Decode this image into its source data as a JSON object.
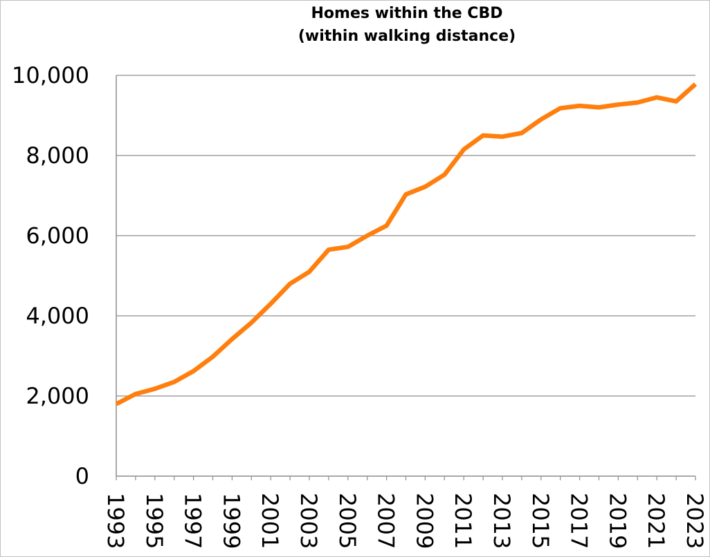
{
  "chart_data": {
    "type": "line",
    "title": "Homes within the CBD",
    "subtitle": "(within walking distance)",
    "xlabel": "",
    "ylabel": "",
    "ylim": [
      0,
      10000
    ],
    "xlim": [
      1993,
      2023
    ],
    "grid": true,
    "y_ticks": [
      "0",
      "2,000",
      "4,000",
      "6,000",
      "8,000",
      "10,000"
    ],
    "y_tick_values": [
      0,
      2000,
      4000,
      6000,
      8000,
      10000
    ],
    "x_tick_labels": [
      "1993",
      "1995",
      "1997",
      "1999",
      "2001",
      "2003",
      "2005",
      "2007",
      "2009",
      "2011",
      "2013",
      "2015",
      "2017",
      "2019",
      "2021",
      "2023"
    ],
    "x": [
      1993,
      1994,
      1995,
      1996,
      1997,
      1998,
      1999,
      2000,
      2001,
      2002,
      2003,
      2004,
      2005,
      2006,
      2007,
      2008,
      2009,
      2010,
      2011,
      2012,
      2013,
      2014,
      2015,
      2016,
      2017,
      2018,
      2019,
      2020,
      2021,
      2022,
      2023
    ],
    "series": [
      {
        "color": "#ff7f0e",
        "values": [
          1800,
          2050,
          2180,
          2350,
          2620,
          2980,
          3420,
          3830,
          4300,
          4800,
          5100,
          5650,
          5720,
          6000,
          6250,
          7030,
          7220,
          7520,
          8150,
          8500,
          8470,
          8560,
          8900,
          9180,
          9240,
          9200,
          9270,
          9320,
          9450,
          9350,
          9780
        ]
      }
    ],
    "colors": {
      "line": "#ff7f0e",
      "grid": "#8c8c8c",
      "axis": "#8c8c8c"
    }
  }
}
